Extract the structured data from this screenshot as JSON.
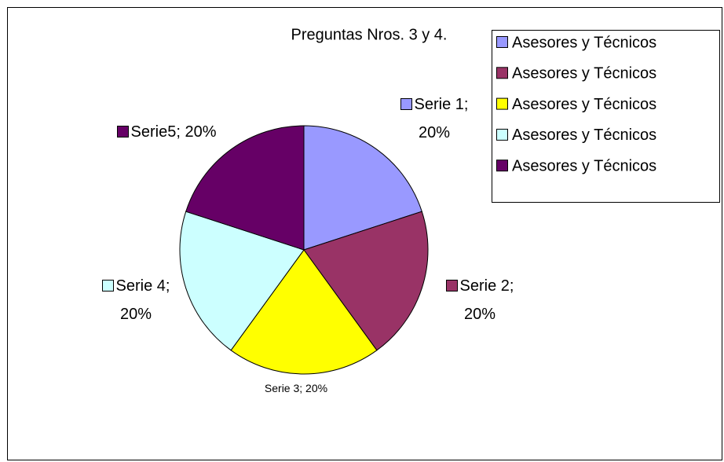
{
  "chart_data": {
    "type": "pie",
    "title": "Preguntas Nros. 3 y 4.",
    "categories": [
      "Asesores y Técnicos",
      "Asesores y Técnicos",
      "Asesores y Técnicos",
      "Asesores y Técnicos",
      "Asesores y Técnicos"
    ],
    "values": [
      20,
      20,
      20,
      20,
      20
    ],
    "value_labels": [
      "Serie 1; 20%",
      "Serie 2; 20%",
      "Serie 3; 20%",
      "Serie 4; 20%",
      "Serie5; 20%"
    ],
    "colors": [
      "#9999ff",
      "#993366",
      "#ffff00",
      "#ccffff",
      "#660066"
    ],
    "legend": "right"
  }
}
